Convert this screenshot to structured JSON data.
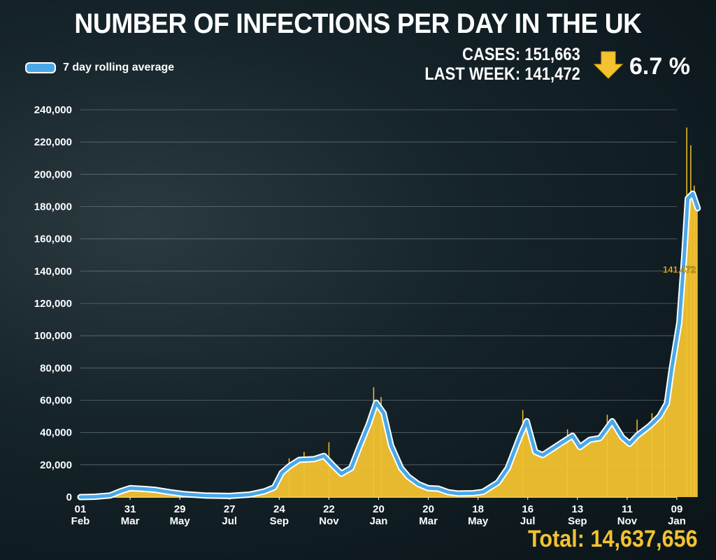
{
  "title": "NUMBER OF INFECTIONS PER DAY IN THE UK",
  "legend": {
    "label": "7 day rolling average",
    "color": "#4aa8e8"
  },
  "stats": {
    "cases_label": "CASES: 151,663",
    "last_week_label": "LAST WEEK: 141,472",
    "change": "6.7 %",
    "arrow_icon": "down-arrow-icon",
    "arrow_color": "#f2c230"
  },
  "total_label": "Total: 14,637,656",
  "chart_data": {
    "type": "area",
    "ylim": [
      0,
      240000
    ],
    "yticks": [
      "0",
      "20,000",
      "40,000",
      "60,000",
      "80,000",
      "100,000",
      "120,000",
      "140,000",
      "160,000",
      "180,000",
      "200,000",
      "220,000",
      "240,000"
    ],
    "xticks": [
      {
        "top": "01",
        "bottom": "Feb"
      },
      {
        "top": "31",
        "bottom": "Mar"
      },
      {
        "top": "29",
        "bottom": "May"
      },
      {
        "top": "27",
        "bottom": "Jul"
      },
      {
        "top": "24",
        "bottom": "Sep"
      },
      {
        "top": "22",
        "bottom": "Nov"
      },
      {
        "top": "20",
        "bottom": "Jan"
      },
      {
        "top": "20",
        "bottom": "Mar"
      },
      {
        "top": "18",
        "bottom": "May"
      },
      {
        "top": "16",
        "bottom": "Jul"
      },
      {
        "top": "13",
        "bottom": "Sep"
      },
      {
        "top": "11",
        "bottom": "Nov"
      },
      {
        "top": "09",
        "bottom": "Jan"
      }
    ],
    "series": [
      {
        "name": "7 day rolling average",
        "color": "#4aa8e8",
        "points": [
          [
            0,
            0
          ],
          [
            0.3,
            200
          ],
          [
            0.6,
            1000
          ],
          [
            0.8,
            3500
          ],
          [
            1.0,
            5500
          ],
          [
            1.3,
            5000
          ],
          [
            1.5,
            4500
          ],
          [
            1.8,
            3000
          ],
          [
            2.1,
            1800
          ],
          [
            2.5,
            1000
          ],
          [
            3.0,
            700
          ],
          [
            3.4,
            1500
          ],
          [
            3.7,
            3500
          ],
          [
            3.9,
            6000
          ],
          [
            4.05,
            15000
          ],
          [
            4.2,
            19000
          ],
          [
            4.4,
            23000
          ],
          [
            4.7,
            23500
          ],
          [
            4.9,
            25500
          ],
          [
            5.1,
            19000
          ],
          [
            5.25,
            14500
          ],
          [
            5.45,
            18000
          ],
          [
            5.6,
            30000
          ],
          [
            5.8,
            45000
          ],
          [
            5.95,
            58500
          ],
          [
            6.1,
            52000
          ],
          [
            6.25,
            32000
          ],
          [
            6.45,
            18000
          ],
          [
            6.6,
            12500
          ],
          [
            6.8,
            8000
          ],
          [
            7.0,
            5500
          ],
          [
            7.2,
            5200
          ],
          [
            7.4,
            3000
          ],
          [
            7.6,
            2200
          ],
          [
            7.9,
            2400
          ],
          [
            8.1,
            3200
          ],
          [
            8.4,
            9000
          ],
          [
            8.6,
            18000
          ],
          [
            8.85,
            38000
          ],
          [
            8.98,
            47000
          ],
          [
            9.15,
            28000
          ],
          [
            9.3,
            26000
          ],
          [
            9.5,
            30000
          ],
          [
            9.7,
            34000
          ],
          [
            9.9,
            38000
          ],
          [
            10.05,
            31000
          ],
          [
            10.25,
            35500
          ],
          [
            10.45,
            36500
          ],
          [
            10.7,
            47000
          ],
          [
            10.9,
            37000
          ],
          [
            11.05,
            33000
          ],
          [
            11.2,
            38000
          ],
          [
            11.45,
            44000
          ],
          [
            11.65,
            50000
          ],
          [
            11.8,
            58000
          ],
          [
            11.9,
            80000
          ],
          [
            12.05,
            108000
          ],
          [
            12.15,
            150000
          ],
          [
            12.22,
            185000
          ],
          [
            12.32,
            188000
          ],
          [
            12.42,
            179000
          ]
        ]
      }
    ],
    "daily_spikes": [
      [
        4.2,
        24000
      ],
      [
        4.5,
        28000
      ],
      [
        5.0,
        34000
      ],
      [
        5.9,
        68000
      ],
      [
        6.05,
        62000
      ],
      [
        8.9,
        54000
      ],
      [
        9.8,
        42000
      ],
      [
        10.6,
        51000
      ],
      [
        11.2,
        48000
      ],
      [
        11.5,
        52000
      ],
      [
        11.75,
        60000
      ],
      [
        12.2,
        229000
      ],
      [
        12.28,
        218000
      ],
      [
        12.35,
        193000
      ]
    ],
    "annotation": "141,472",
    "area_color": "#f2c230"
  }
}
